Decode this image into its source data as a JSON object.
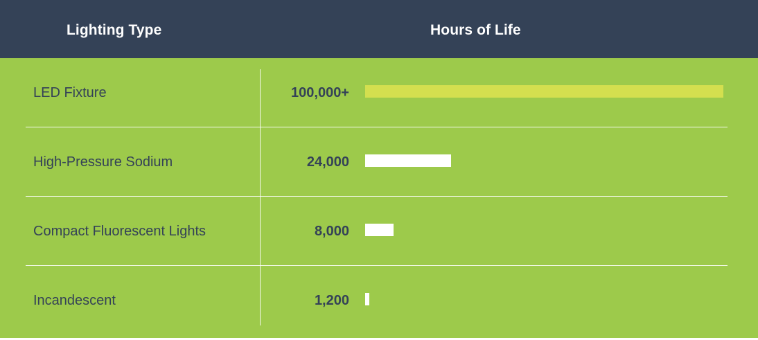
{
  "colors": {
    "header_bg": "#344257",
    "body_bg": "#9dca4b",
    "text_dark": "#344257",
    "highlight_bar": "#d4df4f",
    "bar": "#ffffff"
  },
  "header": {
    "type_label": "Lighting Type",
    "hours_label": "Hours of Life"
  },
  "rows": [
    {
      "label": "LED Fixture",
      "value_label": "100,000+",
      "highlight": true
    },
    {
      "label": "High-Pressure Sodium",
      "value_label": "24,000",
      "highlight": false
    },
    {
      "label": "Compact Fluorescent Lights",
      "value_label": "8,000",
      "highlight": false
    },
    {
      "label": "Incandescent",
      "value_label": "1,200",
      "highlight": false
    }
  ],
  "chart_data": {
    "type": "bar",
    "orientation": "horizontal",
    "categories": [
      "LED Fixture",
      "High-Pressure Sodium",
      "Compact Fluorescent Lights",
      "Incandescent"
    ],
    "values": [
      100000,
      24000,
      8000,
      1200
    ],
    "value_labels": [
      "100,000+",
      "24,000",
      "8,000",
      "1,200"
    ],
    "xlim": [
      0,
      100000
    ],
    "columns": [
      "Lighting Type",
      "Hours of Life"
    ],
    "grid": false,
    "legend": "none"
  }
}
